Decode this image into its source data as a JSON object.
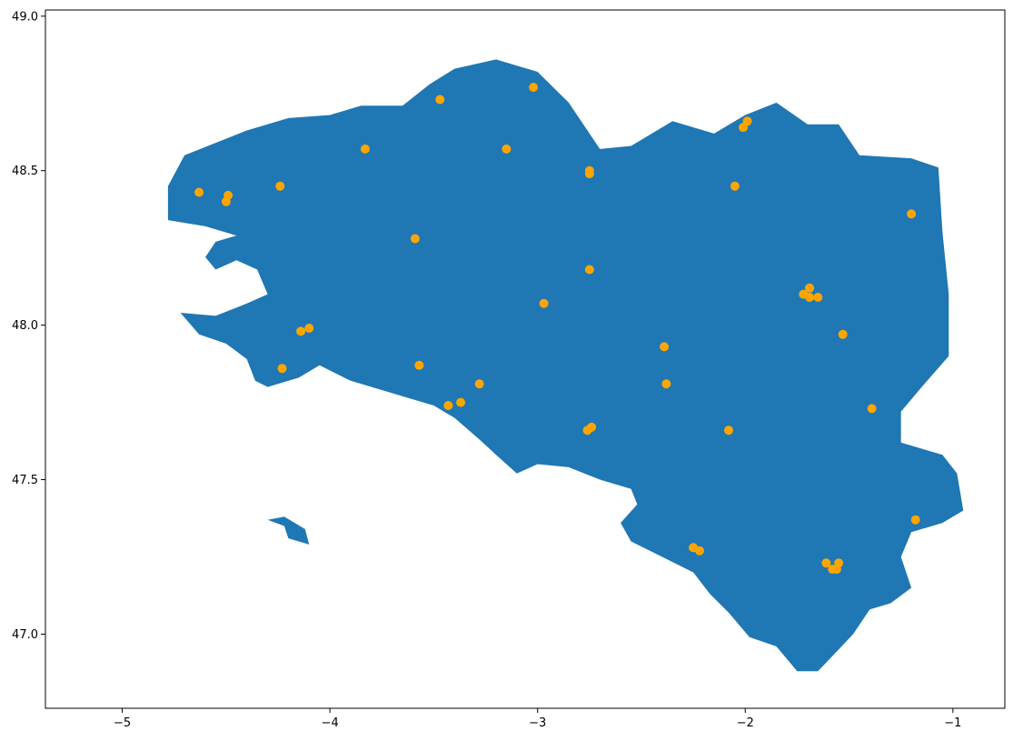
{
  "chart_data": {
    "type": "scatter",
    "title": "",
    "xlabel": "",
    "ylabel": "",
    "xlim": [
      -5.37,
      -0.75
    ],
    "ylim": [
      46.76,
      49.02
    ],
    "grid": false,
    "xticks": [
      -5,
      -4,
      -3,
      -2,
      -1
    ],
    "xtick_labels": [
      "−5",
      "−4",
      "−3",
      "−2",
      "−1"
    ],
    "yticks": [
      47.0,
      47.5,
      48.0,
      48.5,
      49.0
    ],
    "ytick_labels": [
      "47.0",
      "47.5",
      "48.0",
      "48.5",
      "49.0"
    ],
    "region_color": "#1f77b4",
    "point_color": "#ffa500",
    "region_outline": [
      [
        -4.78,
        48.34
      ],
      [
        -4.78,
        48.45
      ],
      [
        -4.7,
        48.55
      ],
      [
        -4.55,
        48.59
      ],
      [
        -4.4,
        48.63
      ],
      [
        -4.2,
        48.67
      ],
      [
        -4.0,
        48.68
      ],
      [
        -3.85,
        48.71
      ],
      [
        -3.65,
        48.71
      ],
      [
        -3.52,
        48.78
      ],
      [
        -3.4,
        48.83
      ],
      [
        -3.2,
        48.86
      ],
      [
        -3.0,
        48.82
      ],
      [
        -2.85,
        48.72
      ],
      [
        -2.7,
        48.57
      ],
      [
        -2.55,
        48.58
      ],
      [
        -2.35,
        48.66
      ],
      [
        -2.15,
        48.62
      ],
      [
        -2.0,
        48.68
      ],
      [
        -1.85,
        48.72
      ],
      [
        -1.7,
        48.65
      ],
      [
        -1.55,
        48.65
      ],
      [
        -1.45,
        48.55
      ],
      [
        -1.2,
        48.54
      ],
      [
        -1.07,
        48.51
      ],
      [
        -1.05,
        48.3
      ],
      [
        -1.02,
        48.1
      ],
      [
        -1.02,
        47.9
      ],
      [
        -1.15,
        47.8
      ],
      [
        -1.25,
        47.72
      ],
      [
        -1.25,
        47.62
      ],
      [
        -1.05,
        47.58
      ],
      [
        -0.98,
        47.52
      ],
      [
        -0.95,
        47.4
      ],
      [
        -1.05,
        47.36
      ],
      [
        -1.2,
        47.33
      ],
      [
        -1.25,
        47.25
      ],
      [
        -1.2,
        47.15
      ],
      [
        -1.3,
        47.1
      ],
      [
        -1.4,
        47.08
      ],
      [
        -1.48,
        47.0
      ],
      [
        -1.55,
        46.95
      ],
      [
        -1.65,
        46.88
      ],
      [
        -1.75,
        46.88
      ],
      [
        -1.85,
        46.96
      ],
      [
        -1.98,
        46.99
      ],
      [
        -2.08,
        47.07
      ],
      [
        -2.17,
        47.13
      ],
      [
        -2.25,
        47.2
      ],
      [
        -2.4,
        47.25
      ],
      [
        -2.55,
        47.3
      ],
      [
        -2.6,
        47.36
      ],
      [
        -2.52,
        47.42
      ],
      [
        -2.55,
        47.47
      ],
      [
        -2.7,
        47.5
      ],
      [
        -2.85,
        47.54
      ],
      [
        -3.0,
        47.55
      ],
      [
        -3.1,
        47.52
      ],
      [
        -3.2,
        47.58
      ],
      [
        -3.28,
        47.63
      ],
      [
        -3.4,
        47.7
      ],
      [
        -3.5,
        47.74
      ],
      [
        -3.6,
        47.76
      ],
      [
        -3.75,
        47.79
      ],
      [
        -3.9,
        47.82
      ],
      [
        -4.05,
        47.87
      ],
      [
        -4.15,
        47.83
      ],
      [
        -4.3,
        47.8
      ],
      [
        -4.36,
        47.82
      ],
      [
        -4.4,
        47.89
      ],
      [
        -4.5,
        47.94
      ],
      [
        -4.63,
        47.97
      ],
      [
        -4.72,
        48.04
      ],
      [
        -4.55,
        48.03
      ],
      [
        -4.4,
        48.07
      ],
      [
        -4.3,
        48.1
      ],
      [
        -4.35,
        48.18
      ],
      [
        -4.45,
        48.21
      ],
      [
        -4.55,
        48.18
      ],
      [
        -4.6,
        48.22
      ],
      [
        -4.55,
        48.27
      ],
      [
        -4.45,
        48.29
      ],
      [
        -4.6,
        48.32
      ],
      [
        -4.78,
        48.34
      ]
    ],
    "islands": [
      [
        [
          -4.3,
          47.37
        ],
        [
          -4.22,
          47.35
        ],
        [
          -4.2,
          47.31
        ],
        [
          -4.1,
          47.29
        ],
        [
          -4.12,
          47.34
        ],
        [
          -4.22,
          47.38
        ]
      ]
    ],
    "points": [
      [
        -4.63,
        48.43
      ],
      [
        -4.49,
        48.42
      ],
      [
        -4.5,
        48.4
      ],
      [
        -4.24,
        48.45
      ],
      [
        -3.83,
        48.57
      ],
      [
        -3.47,
        48.73
      ],
      [
        -3.02,
        48.77
      ],
      [
        -3.15,
        48.57
      ],
      [
        -2.75,
        48.5
      ],
      [
        -2.75,
        48.49
      ],
      [
        -2.01,
        48.64
      ],
      [
        -1.99,
        48.66
      ],
      [
        -2.05,
        48.45
      ],
      [
        -1.2,
        48.36
      ],
      [
        -3.59,
        48.28
      ],
      [
        -2.75,
        48.18
      ],
      [
        -2.97,
        48.07
      ],
      [
        -1.72,
        48.1
      ],
      [
        -1.69,
        48.12
      ],
      [
        -1.69,
        48.09
      ],
      [
        -1.65,
        48.09
      ],
      [
        -1.53,
        47.97
      ],
      [
        -4.14,
        47.98
      ],
      [
        -4.1,
        47.99
      ],
      [
        -4.23,
        47.86
      ],
      [
        -3.57,
        47.87
      ],
      [
        -2.39,
        47.93
      ],
      [
        -2.38,
        47.81
      ],
      [
        -3.28,
        47.81
      ],
      [
        -3.43,
        47.74
      ],
      [
        -3.37,
        47.75
      ],
      [
        -2.76,
        47.66
      ],
      [
        -2.74,
        47.67
      ],
      [
        -2.08,
        47.66
      ],
      [
        -1.39,
        47.73
      ],
      [
        -1.18,
        47.37
      ],
      [
        -2.25,
        47.28
      ],
      [
        -2.22,
        47.27
      ],
      [
        -1.61,
        47.23
      ],
      [
        -1.58,
        47.21
      ],
      [
        -1.56,
        47.21
      ],
      [
        -1.55,
        47.23
      ]
    ]
  }
}
